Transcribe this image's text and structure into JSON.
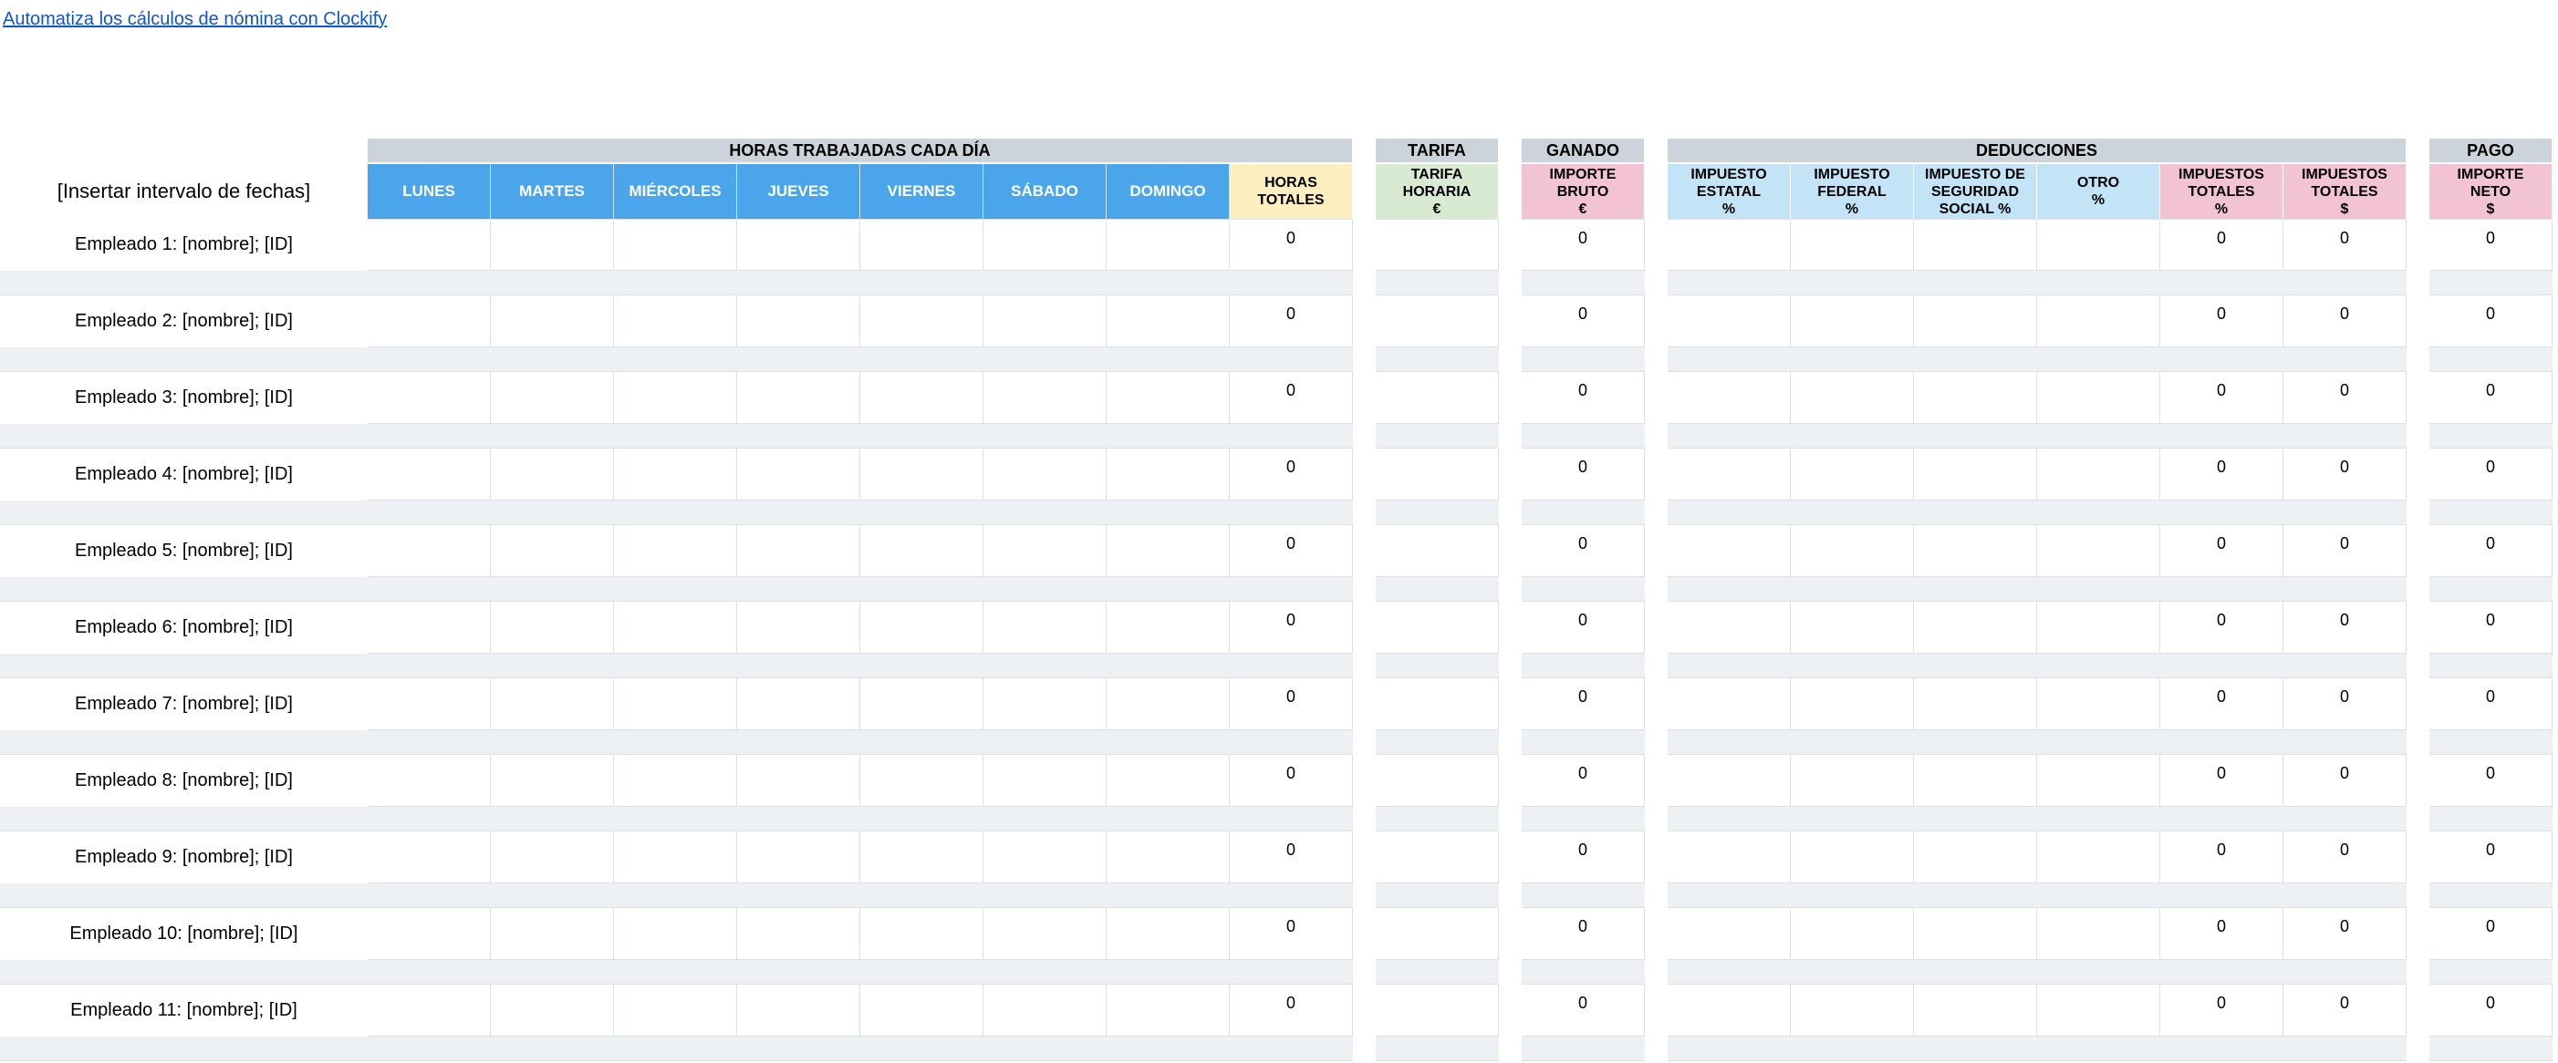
{
  "link_text": "Automatiza los cálculos de nómina con Clockify",
  "date_range_label": "[Insertar intervalo de fechas]",
  "groups": {
    "hours": "HORAS TRABAJADAS CADA DÍA",
    "rate": "TARIFA",
    "earned": "GANADO",
    "deductions": "DEDUCCIONES",
    "payment": "PAGO"
  },
  "days": [
    "LUNES",
    "MARTES",
    "MIÉRCOLES",
    "JUEVES",
    "VIERNES",
    "SÁBADO",
    "DOMINGO"
  ],
  "subheaders": {
    "total_hours": [
      "HORAS",
      "TOTALES"
    ],
    "hourly_rate": [
      "TARIFA",
      "HORARIA",
      "€"
    ],
    "gross": [
      "IMPORTE",
      "BRUTO",
      "€"
    ],
    "state_tax": [
      "IMPUESTO",
      "ESTATAL",
      "%"
    ],
    "federal_tax": [
      "IMPUESTO",
      "FEDERAL",
      "%"
    ],
    "social_security": [
      "IMPUESTO DE",
      "SEGURIDAD",
      "SOCIAL %"
    ],
    "other": [
      "OTRO",
      "%"
    ],
    "total_tax_pct": [
      "IMPUESTOS",
      "TOTALES",
      "%"
    ],
    "total_tax_usd": [
      "IMPUESTOS",
      "TOTALES",
      "$"
    ],
    "net": [
      "IMPORTE",
      "NETO",
      "$"
    ]
  },
  "employees": [
    {
      "name": "Empleado 1: [nombre]; [ID]",
      "total_hours": "0",
      "gross": "0",
      "tax_pct": "0",
      "tax_usd": "0",
      "net": "0"
    },
    {
      "name": "Empleado 2: [nombre]; [ID]",
      "total_hours": "0",
      "gross": "0",
      "tax_pct": "0",
      "tax_usd": "0",
      "net": "0"
    },
    {
      "name": "Empleado 3: [nombre]; [ID]",
      "total_hours": "0",
      "gross": "0",
      "tax_pct": "0",
      "tax_usd": "0",
      "net": "0"
    },
    {
      "name": "Empleado 4: [nombre]; [ID]",
      "total_hours": "0",
      "gross": "0",
      "tax_pct": "0",
      "tax_usd": "0",
      "net": "0"
    },
    {
      "name": "Empleado 5: [nombre]; [ID]",
      "total_hours": "0",
      "gross": "0",
      "tax_pct": "0",
      "tax_usd": "0",
      "net": "0"
    },
    {
      "name": "Empleado 6: [nombre]; [ID]",
      "total_hours": "0",
      "gross": "0",
      "tax_pct": "0",
      "tax_usd": "0",
      "net": "0"
    },
    {
      "name": "Empleado 7: [nombre]; [ID]",
      "total_hours": "0",
      "gross": "0",
      "tax_pct": "0",
      "tax_usd": "0",
      "net": "0"
    },
    {
      "name": "Empleado 8: [nombre]; [ID]",
      "total_hours": "0",
      "gross": "0",
      "tax_pct": "0",
      "tax_usd": "0",
      "net": "0"
    },
    {
      "name": "Empleado 9: [nombre]; [ID]",
      "total_hours": "0",
      "gross": "0",
      "tax_pct": "0",
      "tax_usd": "0",
      "net": "0"
    },
    {
      "name": "Empleado 10: [nombre]; [ID]",
      "total_hours": "0",
      "gross": "0",
      "tax_pct": "0",
      "tax_usd": "0",
      "net": "0"
    },
    {
      "name": "Empleado 11: [nombre]; [ID]",
      "total_hours": "0",
      "gross": "0",
      "tax_pct": "0",
      "tax_usd": "0",
      "net": "0"
    }
  ]
}
